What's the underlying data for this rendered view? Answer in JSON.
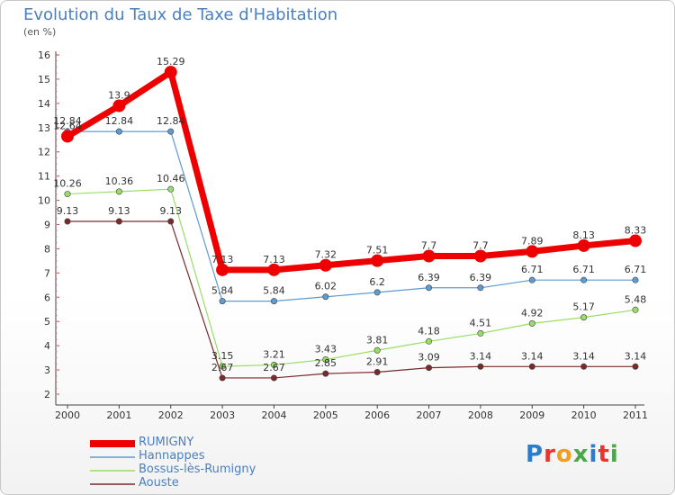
{
  "title": "Evolution du Taux de Taxe d'Habitation",
  "unit": "(en %)",
  "logo": "Proxiti",
  "chart_data": {
    "type": "line",
    "title": "Evolution du Taux de Taxe d'Habitation",
    "ylabel": "(en %)",
    "xlabel": "",
    "categories": [
      "2000",
      "2001",
      "2002",
      "2003",
      "2004",
      "2005",
      "2006",
      "2007",
      "2008",
      "2009",
      "2010",
      "2011"
    ],
    "ylim": [
      2,
      16
    ],
    "yticks": [
      2,
      3,
      4,
      5,
      6,
      7,
      8,
      9,
      10,
      11,
      12,
      13,
      14,
      15,
      16
    ],
    "grid": false,
    "legend": "bottom-left",
    "series": [
      {
        "name": "RUMIGNY",
        "color": "#ee0000",
        "values": [
          12.64,
          13.9,
          15.29,
          7.13,
          7.13,
          7.32,
          7.51,
          7.7,
          7.7,
          7.89,
          8.13,
          8.33
        ],
        "labels": [
          "12.64",
          "13.9",
          "15.29",
          "7.13",
          "7.13",
          "7.32",
          "7.51",
          "7.7",
          "7.7",
          "7.89",
          "8.13",
          "8.33"
        ]
      },
      {
        "name": "Hannappes",
        "color": "#5d9bd0",
        "values": [
          12.84,
          12.84,
          12.84,
          5.84,
          5.84,
          6.02,
          6.2,
          6.39,
          6.39,
          6.71,
          6.71,
          6.71
        ],
        "labels": [
          "12.84",
          "12.84",
          "12.84",
          "5.84",
          "5.84",
          "6.02",
          "6.2",
          "6.39",
          "6.39",
          "6.71",
          "6.71",
          "6.71"
        ]
      },
      {
        "name": "Bossus-lès-Rumigny",
        "color": "#99dd66",
        "values": [
          10.26,
          10.36,
          10.46,
          3.15,
          3.21,
          3.43,
          3.81,
          4.18,
          4.51,
          4.92,
          5.17,
          5.48
        ],
        "labels": [
          "10.26",
          "10.36",
          "10.46",
          "3.15",
          "3.21",
          "3.43",
          "3.81",
          "4.18",
          "4.51",
          "4.92",
          "5.17",
          "5.48"
        ]
      },
      {
        "name": "Aouste",
        "color": "#7a2a2a",
        "values": [
          9.13,
          9.13,
          9.13,
          2.67,
          2.67,
          2.85,
          2.91,
          3.09,
          3.14,
          3.14,
          3.14,
          3.14
        ],
        "labels": [
          "9.13",
          "9.13",
          "9.13",
          "2.67",
          "2.67",
          "2.85",
          "2.91",
          "3.09",
          "3.14",
          "3.14",
          "3.14",
          "3.14"
        ]
      }
    ]
  }
}
